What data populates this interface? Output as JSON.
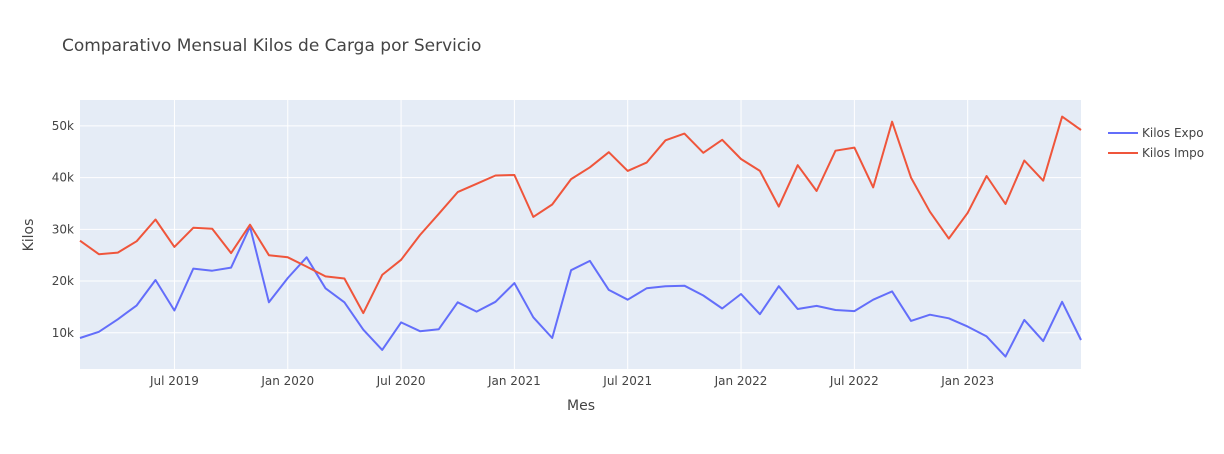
{
  "chart_data": {
    "type": "line",
    "title": "Comparativo Mensual Kilos de Carga por Servicio",
    "xlabel": "Mes",
    "ylabel": "Kilos",
    "x_tick_labels": [
      "Jul 2019",
      "Jan 2020",
      "Jul 2020",
      "Jan 2021",
      "Jul 2021",
      "Jan 2022",
      "Jul 2022",
      "Jan 2023"
    ],
    "y_tick_labels": [
      "10k",
      "20k",
      "30k",
      "40k",
      "50k"
    ],
    "y_ticks": [
      10000,
      20000,
      30000,
      40000,
      50000
    ],
    "ylim": [
      3000,
      55000
    ],
    "xlim": [
      "2019-02",
      "2023-07"
    ],
    "grid": true,
    "legend_position": "top-right",
    "background": "#e5ecf6",
    "x": [
      "2019-02",
      "2019-03",
      "2019-04",
      "2019-05",
      "2019-06",
      "2019-07",
      "2019-08",
      "2019-09",
      "2019-10",
      "2019-11",
      "2019-12",
      "2020-01",
      "2020-02",
      "2020-03",
      "2020-04",
      "2020-05",
      "2020-06",
      "2020-07",
      "2020-08",
      "2020-09",
      "2020-10",
      "2020-11",
      "2020-12",
      "2021-01",
      "2021-02",
      "2021-03",
      "2021-04",
      "2021-05",
      "2021-06",
      "2021-07",
      "2021-08",
      "2021-09",
      "2021-10",
      "2021-11",
      "2021-12",
      "2022-01",
      "2022-02",
      "2022-03",
      "2022-04",
      "2022-05",
      "2022-06",
      "2022-07",
      "2022-08",
      "2022-09",
      "2022-10",
      "2022-11",
      "2022-12",
      "2023-01",
      "2023-02",
      "2023-03",
      "2023-04",
      "2023-05",
      "2023-06",
      "2023-07"
    ],
    "series": [
      {
        "name": "Kilos Expo",
        "color": "#636efa",
        "values": [
          9000,
          10200,
          12600,
          15300,
          20200,
          14300,
          22400,
          22000,
          22600,
          30500,
          15900,
          20600,
          24600,
          18600,
          15900,
          10600,
          6700,
          12000,
          10300,
          10700,
          15900,
          14100,
          16000,
          19600,
          13000,
          9000,
          22100,
          23900,
          18300,
          16400,
          18600,
          19000,
          19100,
          17200,
          14700,
          17500,
          13600,
          19000,
          14600,
          15200,
          14400,
          14200,
          16400,
          18000,
          12300,
          13500,
          12800,
          11200,
          9300,
          5400,
          12500,
          8400,
          16000,
          8600
        ]
      },
      {
        "name": "Kilos Impo",
        "color": "#ef553b",
        "values": [
          27800,
          25200,
          25500,
          27700,
          31900,
          26600,
          30300,
          30100,
          25400,
          30900,
          25000,
          24600,
          22800,
          20900,
          20500,
          13800,
          21200,
          24100,
          28900,
          33000,
          37200,
          38800,
          40400,
          40500,
          32400,
          34800,
          39700,
          42000,
          44900,
          41300,
          42900,
          47200,
          48500,
          44800,
          47300,
          43600,
          41300,
          34400,
          42400,
          37400,
          45200,
          45800,
          38100,
          50800,
          40000,
          33400,
          28200,
          33200,
          40300,
          34900,
          43300,
          39400,
          51800,
          49200
        ]
      }
    ]
  }
}
